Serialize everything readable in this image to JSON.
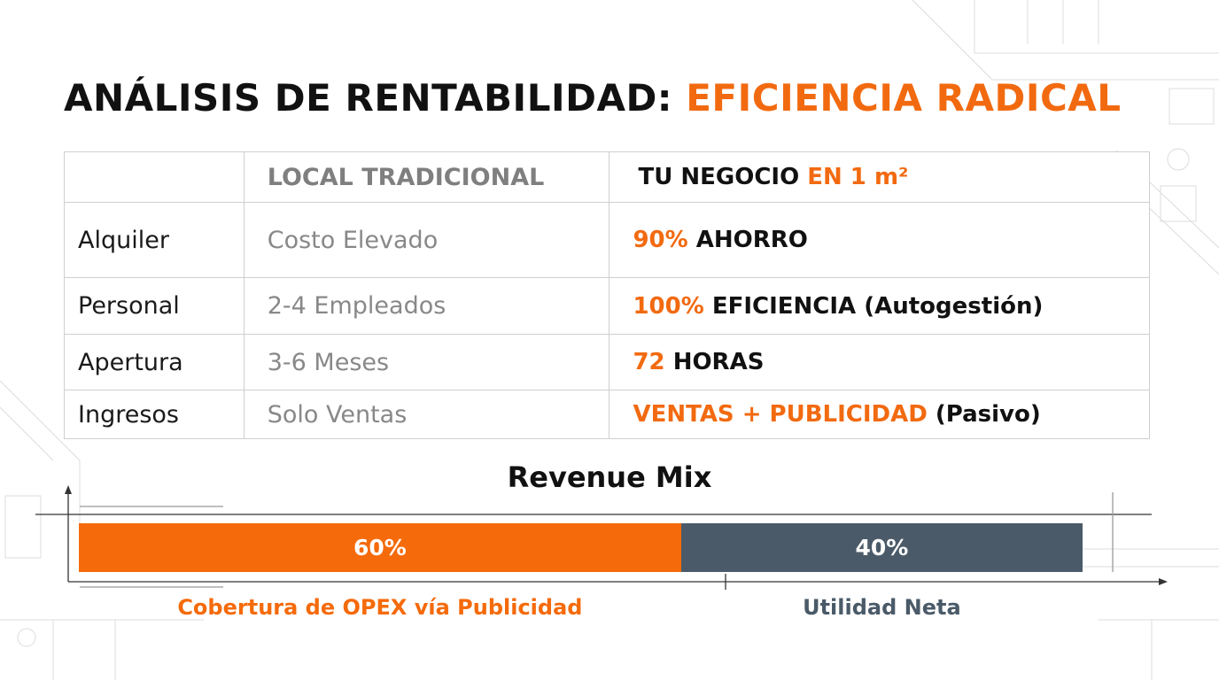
{
  "title": {
    "part1": "ANÁLISIS DE RENTABILIDAD: ",
    "part2": "EFICIENCIA RADICAL"
  },
  "table": {
    "header_traditional": "LOCAL TRADICIONAL",
    "header_new_prefix": "TU NEGOCIO ",
    "header_new_accent": "EN 1 m²",
    "rows": [
      {
        "label": "Alquiler",
        "traditional": "Costo Elevado",
        "new_accent": "90%",
        "new_rest": " AHORRO"
      },
      {
        "label": "Personal",
        "traditional": "2-4 Empleados",
        "new_accent": "100%",
        "new_rest": " EFICIENCIA (Autogestión)"
      },
      {
        "label": "Apertura",
        "traditional": "3-6 Meses",
        "new_accent": "72",
        "new_rest": " HORAS"
      },
      {
        "label": "Ingresos",
        "traditional": "Solo Ventas",
        "new_accent": "VENTAS + PUBLICIDAD",
        "new_rest": " (Pasivo)"
      }
    ]
  },
  "chart_data": {
    "type": "bar",
    "title": "Revenue Mix",
    "orientation": "horizontal-stacked",
    "series": [
      {
        "name": "Cobertura de OPEX vía Publicidad",
        "value": 60,
        "label": "60%",
        "color": "#f56a0a"
      },
      {
        "name": "Utilidad Neta",
        "value": 40,
        "label": "40%",
        "color": "#4a5a68"
      }
    ],
    "xlim": [
      0,
      100
    ]
  },
  "colors": {
    "accent": "#f26a10",
    "slate": "#4a5a68"
  }
}
